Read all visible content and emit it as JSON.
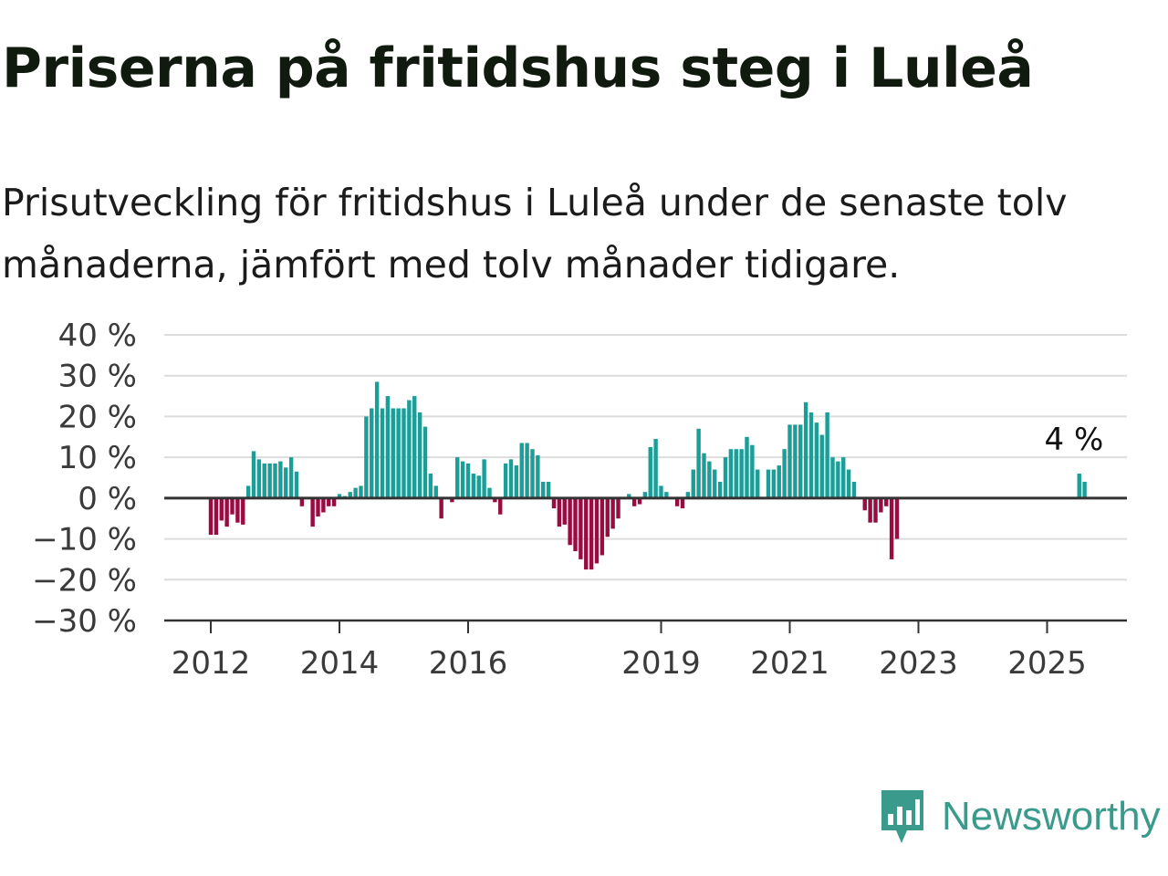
{
  "title": "Priserna på fritidshus steg i Luleå",
  "subtitle": "Prisutveckling för fritidshus i Luleå under de senaste tolv månaderna, jämfört med tolv månader tidigare.",
  "brand": {
    "name": "Newsworthy",
    "icon": "newsworthy-logo-icon",
    "color": "#3a9a8c"
  },
  "colors": {
    "positive": "#1a9e97",
    "negative": "#980c42",
    "grid": "#dcdcdc",
    "zero_line": "#333333"
  },
  "chart_data": {
    "type": "bar",
    "x_unit": "month",
    "y_ticks": [
      {
        "value": 40,
        "label": "40 %"
      },
      {
        "value": 30,
        "label": "30 %"
      },
      {
        "value": 20,
        "label": "20 %"
      },
      {
        "value": 10,
        "label": "10 %"
      },
      {
        "value": 0,
        "label": "0 %"
      },
      {
        "value": -10,
        "label": "−10 %"
      },
      {
        "value": -20,
        "label": "−20 %"
      },
      {
        "value": -30,
        "label": "−30 %"
      }
    ],
    "ylim": [
      -30,
      40
    ],
    "xlim": [
      "2011-05",
      "2026-04"
    ],
    "x_ticks": [
      {
        "date": "2012-01",
        "label": "2012"
      },
      {
        "date": "2014-01",
        "label": "2014"
      },
      {
        "date": "2016-01",
        "label": "2016"
      },
      {
        "date": "2019-01",
        "label": "2019"
      },
      {
        "date": "2021-01",
        "label": "2021"
      },
      {
        "date": "2023-01",
        "label": "2023"
      },
      {
        "date": "2025-01",
        "label": "2025"
      }
    ],
    "annotation": {
      "date": "2025-06",
      "value": 4,
      "label": "4 %"
    },
    "grid": true,
    "start": "2012-01",
    "values": [
      -9,
      -9,
      -5.5,
      -7,
      -4,
      -6,
      -6.5,
      3,
      11.5,
      9.5,
      8.5,
      8.5,
      8.5,
      9,
      7.5,
      10,
      6.5,
      -2,
      0,
      -7,
      -4.5,
      -3.5,
      -2,
      -2,
      1,
      0.5,
      1.5,
      2.5,
      3,
      20,
      22,
      28.5,
      22,
      25,
      22,
      22,
      22,
      24,
      25,
      21,
      17.5,
      6,
      3,
      -5,
      0,
      -1,
      10,
      9,
      8.5,
      6,
      5.5,
      9.5,
      2.5,
      -1,
      -4,
      8.5,
      9.5,
      8,
      13.5,
      13.5,
      12,
      10.5,
      4,
      4,
      -2.5,
      -7,
      -6.5,
      -11.5,
      -13,
      -15,
      -17.5,
      -17.5,
      -16,
      -14,
      -9.5,
      -7.5,
      -5,
      0,
      1,
      -2,
      -1.5,
      1.5,
      12.5,
      14.5,
      3,
      1.5,
      0,
      -2,
      -2.5,
      1.5,
      7,
      17,
      11,
      9,
      7,
      4,
      10,
      12,
      12,
      12,
      15,
      13,
      7,
      0,
      7,
      7,
      8,
      12,
      18,
      18,
      18,
      23.5,
      21,
      18.5,
      15.5,
      21,
      10,
      9,
      10,
      7,
      4,
      0,
      -3,
      -6,
      -6,
      -3.5,
      -2,
      -15,
      -10,
      0,
      0,
      0,
      0,
      0,
      0,
      0,
      0,
      0,
      0,
      0,
      0,
      0,
      0,
      0,
      0,
      0,
      0,
      0,
      0,
      0,
      0,
      0,
      0,
      0,
      0,
      0,
      0,
      0,
      0,
      0,
      0,
      0,
      6,
      4
    ]
  }
}
